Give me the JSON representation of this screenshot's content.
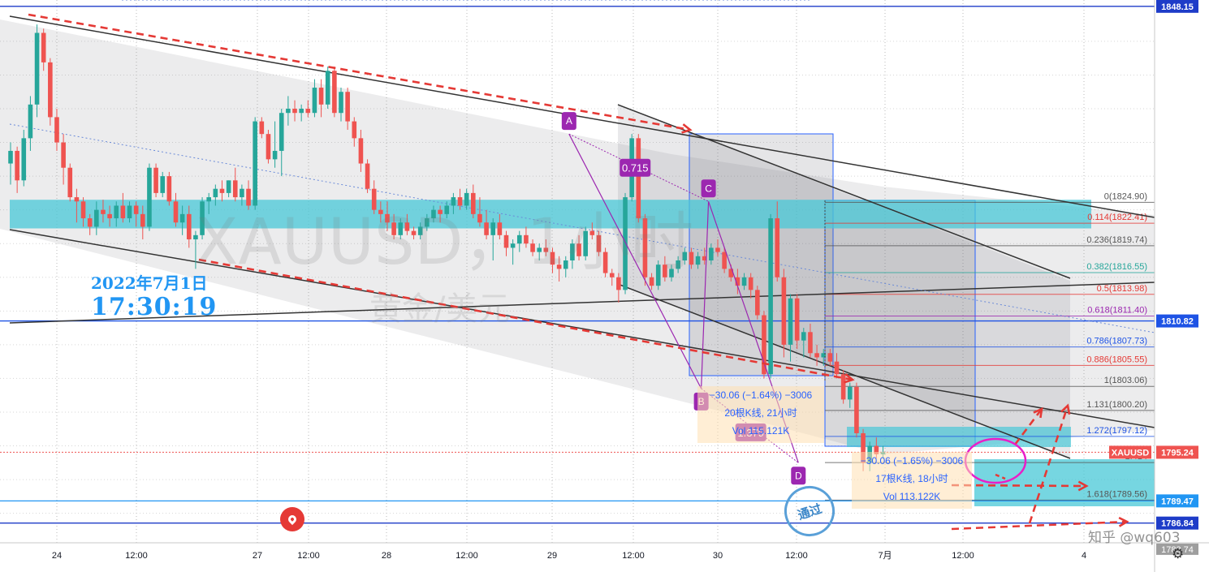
{
  "chart_data": {
    "type": "candlestick",
    "symbol": "XAUUSD",
    "watermark_symbol": "XAUUSD，1小时",
    "watermark_desc": "黄金/美元",
    "date_label": "2022年7月1日",
    "time_label": "17:30:19",
    "ylim": [
      1784.5,
      1848.9
    ],
    "y_ticks": [
      1844.0,
      1840.0,
      1836.0,
      1832.0,
      1828.0,
      1824.0,
      1820.0,
      1816.0,
      1812.0,
      1808.0,
      1804.0,
      1800.0,
      1796.0,
      1792.0,
      1788.0
    ],
    "x_ticks": [
      "24",
      "12:00",
      "27",
      "12:00",
      "28",
      "12:00",
      "29",
      "12:00",
      "30",
      "12:00",
      "7月",
      "12:00",
      "4"
    ],
    "price_tags": [
      {
        "label": "1848.15",
        "value": 1848.15,
        "color": "#1e3cc8"
      },
      {
        "label": "1810.82",
        "value": 1810.82,
        "color": "#1e53e5"
      },
      {
        "label": "1789.47",
        "value": 1789.47,
        "color": "#2196f3"
      },
      {
        "label": "1786.84",
        "value": 1786.84,
        "color": "#1e3cc8"
      },
      {
        "label": "1795.24",
        "value": 1795.24,
        "color": "#ef5350"
      }
    ],
    "current_symbol_tag": "XAUUSD",
    "hidden_tag": "1783.74",
    "fib_levels": [
      {
        "label": "0(1824.90)",
        "value": 1824.9,
        "color": "#555555"
      },
      {
        "label": "0.114(1822.41)",
        "value": 1822.41,
        "color": "#e53935"
      },
      {
        "label": "0.236(1819.74)",
        "value": 1819.74,
        "color": "#555555"
      },
      {
        "label": "0.382(1816.55)",
        "value": 1816.55,
        "color": "#26a69a"
      },
      {
        "label": "0.5(1813.98)",
        "value": 1813.98,
        "color": "#e53935"
      },
      {
        "label": "0.618(1811.40)",
        "value": 1811.4,
        "color": "#9c27b0"
      },
      {
        "label": "0.786(1807.73)",
        "value": 1807.73,
        "color": "#1e53e5"
      },
      {
        "label": "0.886(1805.55)",
        "value": 1805.55,
        "color": "#e53935"
      },
      {
        "label": "1(1803.06)",
        "value": 1803.06,
        "color": "#555555"
      },
      {
        "label": "1.131(1800.20)",
        "value": 1800.2,
        "color": "#555555"
      },
      {
        "label": "1.272(1797.12)",
        "value": 1797.12,
        "color": "#1e53e5"
      },
      {
        "label": "1.414",
        "value": 1794.02,
        "color": "#555555"
      },
      {
        "label": "1.618(1789.56)",
        "value": 1789.56,
        "color": "#555555"
      }
    ],
    "pattern_points": [
      {
        "label": "A",
        "t": 84.5,
        "price": 1833.0
      },
      {
        "label": "B",
        "t": 104.5,
        "price": 1802.8
      },
      {
        "label": "C",
        "t": 105.6,
        "price": 1825.0
      },
      {
        "label": "D",
        "t": 119.2,
        "price": 1794.0
      }
    ],
    "pattern_ratios": [
      {
        "label": "0.715",
        "t": 94.5,
        "price": 1829.0
      },
      {
        "label": "1.379",
        "t": 112.0,
        "price": 1797.6
      }
    ],
    "measure_1": {
      "line1": "−30.06 (−1.64%) −3006",
      "line2": "20根K线, 21小时",
      "line3": "Vol 115.121K"
    },
    "measure_2": {
      "line1": "−30.06 (−1.65%) −3006",
      "line2": "17根K线, 18小时",
      "line3": "Vol 113.122K"
    },
    "stamp": "通过",
    "credit": "知乎 @wq603",
    "candles": [
      [
        1829.5,
        1832.0,
        1827.0,
        1831.0
      ],
      [
        1831.0,
        1831.5,
        1826.0,
        1827.5
      ],
      [
        1827.5,
        1833.5,
        1826.8,
        1832.5
      ],
      [
        1832.5,
        1837.5,
        1831.0,
        1836.5
      ],
      [
        1836.5,
        1846.0,
        1835.0,
        1845.0
      ],
      [
        1845.0,
        1845.5,
        1840.5,
        1841.5
      ],
      [
        1841.5,
        1842.0,
        1834.0,
        1835.0
      ],
      [
        1835.0,
        1836.0,
        1831.0,
        1832.0
      ],
      [
        1832.0,
        1833.0,
        1827.0,
        1829.0
      ],
      [
        1829.0,
        1829.5,
        1825.0,
        1825.5
      ],
      [
        1825.5,
        1826.5,
        1822.5,
        1825.0
      ],
      [
        1825.0,
        1825.5,
        1822.0,
        1823.0
      ],
      [
        1823.0,
        1823.5,
        1821.0,
        1822.0
      ],
      [
        1822.0,
        1825.0,
        1821.0,
        1824.0
      ],
      [
        1824.0,
        1825.2,
        1822.5,
        1823.5
      ],
      [
        1823.5,
        1824.5,
        1822.0,
        1823.0
      ],
      [
        1823.0,
        1825.0,
        1822.0,
        1824.5
      ],
      [
        1824.5,
        1826.0,
        1822.5,
        1823.0
      ],
      [
        1823.0,
        1825.0,
        1822.5,
        1824.5
      ],
      [
        1824.5,
        1825.0,
        1822.0,
        1823.5
      ],
      [
        1823.5,
        1824.5,
        1820.5,
        1822.0
      ],
      [
        1822.0,
        1829.5,
        1821.5,
        1829.0
      ],
      [
        1829.0,
        1829.5,
        1825.5,
        1826.0
      ],
      [
        1826.0,
        1828.5,
        1825.5,
        1828.0
      ],
      [
        1828.0,
        1828.5,
        1824.5,
        1825.0
      ],
      [
        1825.0,
        1826.0,
        1822.0,
        1822.5
      ],
      [
        1822.5,
        1824.5,
        1821.0,
        1823.5
      ],
      [
        1823.5,
        1824.5,
        1819.5,
        1820.5
      ],
      [
        1820.5,
        1821.5,
        1817.0,
        1821.0
      ],
      [
        1821.0,
        1825.5,
        1820.5,
        1825.0
      ],
      [
        1825.0,
        1826.0,
        1823.5,
        1825.5
      ],
      [
        1825.5,
        1827.0,
        1824.5,
        1826.5
      ],
      [
        1826.5,
        1827.5,
        1825.0,
        1826.0
      ],
      [
        1826.0,
        1827.5,
        1825.5,
        1827.5
      ],
      [
        1827.5,
        1829.0,
        1825.0,
        1825.5
      ],
      [
        1825.5,
        1827.0,
        1824.5,
        1826.5
      ],
      [
        1826.5,
        1827.5,
        1824.0,
        1824.5
      ],
      [
        1824.5,
        1835.0,
        1824.0,
        1834.5
      ],
      [
        1834.5,
        1835.0,
        1832.5,
        1833.0
      ],
      [
        1833.0,
        1833.5,
        1829.5,
        1830.0
      ],
      [
        1830.0,
        1834.5,
        1829.0,
        1831.0
      ],
      [
        1831.0,
        1836.0,
        1828.0,
        1835.5
      ],
      [
        1835.5,
        1837.5,
        1834.0,
        1836.0
      ],
      [
        1836.0,
        1837.0,
        1834.5,
        1835.5
      ],
      [
        1835.5,
        1836.5,
        1834.5,
        1836.0
      ],
      [
        1836.0,
        1837.0,
        1835.0,
        1835.5
      ],
      [
        1835.5,
        1839.5,
        1835.0,
        1838.5
      ],
      [
        1838.5,
        1839.5,
        1835.0,
        1836.5
      ],
      [
        1836.5,
        1841.0,
        1836.0,
        1840.5
      ],
      [
        1840.5,
        1841.0,
        1835.0,
        1835.5
      ],
      [
        1835.5,
        1838.5,
        1834.5,
        1838.0
      ],
      [
        1838.0,
        1838.5,
        1833.5,
        1834.5
      ],
      [
        1834.5,
        1835.0,
        1831.5,
        1832.5
      ],
      [
        1832.5,
        1833.5,
        1828.5,
        1829.5
      ],
      [
        1829.5,
        1830.0,
        1826.0,
        1826.5
      ],
      [
        1826.5,
        1827.5,
        1823.5,
        1824.0
      ],
      [
        1824.0,
        1825.0,
        1822.5,
        1823.5
      ],
      [
        1823.5,
        1825.0,
        1821.5,
        1822.5
      ],
      [
        1822.5,
        1823.5,
        1820.5,
        1821.0
      ],
      [
        1821.0,
        1823.0,
        1820.5,
        1822.5
      ],
      [
        1822.5,
        1823.5,
        1821.0,
        1821.5
      ],
      [
        1821.5,
        1822.0,
        1820.5,
        1821.0
      ],
      [
        1821.0,
        1822.5,
        1820.5,
        1822.0
      ],
      [
        1822.0,
        1823.5,
        1821.5,
        1823.0
      ],
      [
        1823.0,
        1824.5,
        1822.5,
        1824.0
      ],
      [
        1824.0,
        1824.5,
        1822.5,
        1823.5
      ],
      [
        1823.5,
        1825.0,
        1823.0,
        1824.5
      ],
      [
        1824.5,
        1826.0,
        1823.5,
        1825.5
      ],
      [
        1825.5,
        1826.5,
        1824.0,
        1824.5
      ],
      [
        1824.5,
        1826.5,
        1824.0,
        1826.0
      ],
      [
        1826.0,
        1827.0,
        1823.0,
        1823.5
      ],
      [
        1823.5,
        1825.5,
        1822.0,
        1822.5
      ],
      [
        1822.5,
        1824.0,
        1820.5,
        1821.0
      ],
      [
        1821.0,
        1823.0,
        1818.0,
        1822.5
      ],
      [
        1822.5,
        1823.5,
        1820.5,
        1821.0
      ],
      [
        1821.0,
        1821.5,
        1818.5,
        1819.5
      ],
      [
        1819.5,
        1820.5,
        1817.5,
        1820.0
      ],
      [
        1820.0,
        1821.5,
        1819.0,
        1821.0
      ],
      [
        1821.0,
        1822.0,
        1819.5,
        1820.0
      ],
      [
        1820.0,
        1820.5,
        1818.5,
        1819.0
      ],
      [
        1819.0,
        1820.0,
        1818.0,
        1819.5
      ],
      [
        1819.5,
        1820.5,
        1818.5,
        1819.0
      ],
      [
        1819.0,
        1819.5,
        1816.5,
        1817.5
      ],
      [
        1817.5,
        1818.5,
        1815.5,
        1817.0
      ],
      [
        1817.0,
        1818.5,
        1816.0,
        1818.0
      ],
      [
        1818.0,
        1820.5,
        1817.0,
        1820.0
      ],
      [
        1820.0,
        1821.0,
        1818.0,
        1818.5
      ],
      [
        1818.5,
        1822.0,
        1818.0,
        1821.5
      ],
      [
        1821.5,
        1822.5,
        1820.5,
        1821.0
      ],
      [
        1821.0,
        1821.5,
        1818.5,
        1819.0
      ],
      [
        1819.0,
        1819.5,
        1816.0,
        1816.5
      ],
      [
        1816.5,
        1817.0,
        1815.0,
        1816.0
      ],
      [
        1816.0,
        1816.5,
        1813.0,
        1814.5
      ],
      [
        1814.5,
        1826.0,
        1814.0,
        1825.5
      ],
      [
        1825.5,
        1833.0,
        1825.0,
        1832.5
      ],
      [
        1832.5,
        1833.0,
        1822.5,
        1823.0
      ],
      [
        1823.0,
        1823.5,
        1815.0,
        1816.0
      ],
      [
        1816.0,
        1816.5,
        1814.5,
        1815.0
      ],
      [
        1815.0,
        1818.0,
        1814.5,
        1817.5
      ],
      [
        1817.5,
        1818.5,
        1815.5,
        1816.0
      ],
      [
        1816.0,
        1817.5,
        1815.5,
        1817.0
      ],
      [
        1817.0,
        1818.5,
        1816.5,
        1818.0
      ],
      [
        1818.0,
        1819.5,
        1817.5,
        1819.0
      ],
      [
        1819.0,
        1819.5,
        1817.0,
        1817.5
      ],
      [
        1817.5,
        1819.0,
        1817.0,
        1818.5
      ],
      [
        1818.5,
        1819.5,
        1817.5,
        1818.0
      ],
      [
        1818.0,
        1820.0,
        1817.5,
        1819.5
      ],
      [
        1819.5,
        1820.5,
        1818.5,
        1819.0
      ],
      [
        1819.0,
        1819.5,
        1816.5,
        1817.0
      ],
      [
        1817.0,
        1817.5,
        1815.5,
        1816.0
      ],
      [
        1816.0,
        1817.0,
        1814.0,
        1815.0
      ],
      [
        1815.0,
        1816.5,
        1814.5,
        1816.0
      ],
      [
        1816.0,
        1816.5,
        1813.5,
        1814.5
      ],
      [
        1814.5,
        1815.0,
        1811.0,
        1811.5
      ],
      [
        1811.5,
        1812.0,
        1804.0,
        1804.5
      ],
      [
        1804.5,
        1823.5,
        1804.0,
        1823.0
      ],
      [
        1823.0,
        1825.0,
        1815.5,
        1816.0
      ],
      [
        1816.0,
        1817.0,
        1806.5,
        1808.0
      ],
      [
        1808.0,
        1814.0,
        1806.0,
        1813.5
      ],
      [
        1813.5,
        1814.0,
        1807.5,
        1808.5
      ],
      [
        1808.5,
        1810.0,
        1806.5,
        1809.5
      ],
      [
        1809.5,
        1810.5,
        1806.5,
        1807.0
      ],
      [
        1807.0,
        1808.0,
        1805.5,
        1806.5
      ],
      [
        1806.5,
        1807.5,
        1805.5,
        1807.0
      ],
      [
        1807.0,
        1807.5,
        1805.5,
        1806.0
      ],
      [
        1806.0,
        1807.0,
        1804.0,
        1804.5
      ],
      [
        1804.5,
        1805.0,
        1801.0,
        1801.5
      ],
      [
        1801.5,
        1803.5,
        1800.5,
        1803.0
      ],
      [
        1803.0,
        1803.5,
        1797.0,
        1797.5
      ],
      [
        1797.5,
        1798.0,
        1793.0,
        1794.0
      ],
      [
        1794.0,
        1796.5,
        1793.0,
        1796.0
      ],
      [
        1796.0,
        1797.0,
        1794.5,
        1795.0
      ],
      [
        1795.0,
        1796.0,
        1794.5,
        1795.24
      ]
    ]
  }
}
